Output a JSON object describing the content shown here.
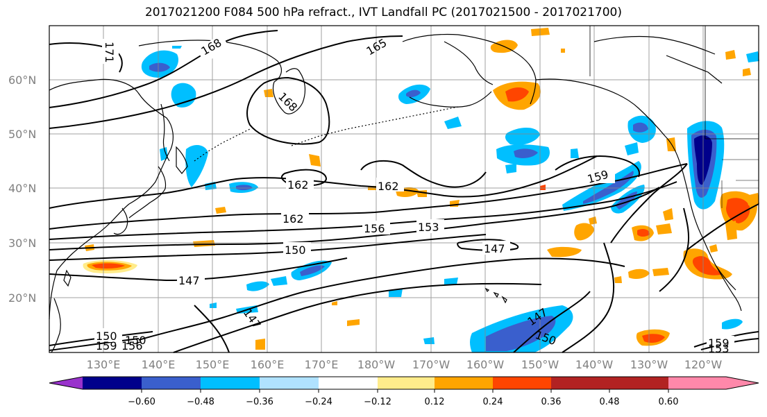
{
  "title": "2017021200 F084 500 hPa refract., IVT Landfall PC (2017021500 - 2017021700)",
  "lat_labels": [
    "60°N",
    "50°N",
    "40°N",
    "30°N",
    "20°N"
  ],
  "lon_labels": [
    "130°E",
    "140°E",
    "150°E",
    "160°E",
    "170°E",
    "180°W",
    "170°W",
    "160°W",
    "150°W",
    "140°W",
    "130°W",
    "120°W"
  ],
  "contour_labels": [
    "171",
    "168",
    "165",
    "168",
    "162",
    "162",
    "159",
    "162",
    "156",
    "153",
    "150",
    "147",
    "147",
    "147",
    "150",
    "150",
    "159",
    "156",
    "147",
    "150",
    "159",
    "153"
  ],
  "colorbar": {
    "colors": [
      "#9932cc",
      "#00008b",
      "#3a5fcd",
      "#00bfff",
      "#b0e2ff",
      "#ffffff",
      "#ffec8b",
      "#ffa500",
      "#ff4500",
      "#b22222",
      "#ff88aa"
    ],
    "tick_labels": [
      "−0.60",
      "−0.48",
      "−0.36",
      "−0.24",
      "−0.12",
      "0.12",
      "0.24",
      "0.36",
      "0.48",
      "0.60"
    ]
  },
  "colors": {
    "coast": "#000000",
    "contour": "#000000",
    "grid": "#888888"
  }
}
